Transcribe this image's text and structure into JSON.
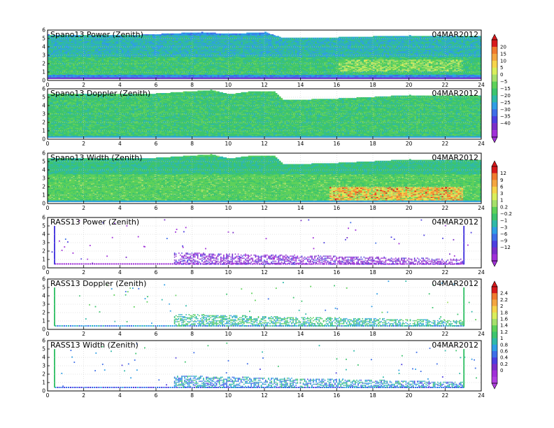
{
  "figure": {
    "date_label": "04MAR2012"
  },
  "chart_data": [
    {
      "type": "heatmap",
      "title": "Spano13 Power (Zenith)",
      "date": "04MAR2012",
      "xlim": [
        0,
        24
      ],
      "ylim": [
        0,
        6
      ],
      "x_ticks": [
        "0",
        "2",
        "4",
        "6",
        "8",
        "10",
        "12",
        "14",
        "16",
        "18",
        "20",
        "22",
        "24"
      ],
      "y_ticks": [
        "0",
        "1",
        "2",
        "3",
        "4",
        "5",
        "6"
      ],
      "grid": true,
      "coverage": "dense",
      "colorbar": "power",
      "top_height_profile": [
        [
          0,
          5.4
        ],
        [
          4,
          5.3
        ],
        [
          8.5,
          5.7
        ],
        [
          10,
          5.5
        ],
        [
          11,
          5.6
        ],
        [
          12,
          5.7
        ],
        [
          13,
          5.0
        ],
        [
          16,
          5.1
        ],
        [
          20,
          5.3
        ],
        [
          24,
          5.2
        ]
      ],
      "description_levels": [
        {
          "height_range": [
            0.3,
            0.7
          ],
          "value": -22
        },
        {
          "height_range": [
            0.7,
            2.8
          ],
          "value": -12
        },
        {
          "height_range": [
            2.8,
            5.3
          ],
          "value": -17
        }
      ]
    },
    {
      "type": "heatmap",
      "title": "Spano13 Doppler (Zenith)",
      "date": "04MAR2012",
      "xlim": [
        0,
        24
      ],
      "ylim": [
        0,
        6
      ],
      "x_ticks": [
        "0",
        "2",
        "4",
        "6",
        "8",
        "10",
        "12",
        "14",
        "16",
        "18",
        "20",
        "22",
        "24"
      ],
      "y_ticks": [
        "0",
        "1",
        "2",
        "3",
        "4",
        "5",
        "6"
      ],
      "grid": true,
      "coverage": "dense",
      "colorbar": "power",
      "top_height_profile": [
        [
          0,
          5.3
        ],
        [
          6,
          5.4
        ],
        [
          9,
          5.8
        ],
        [
          10,
          5.3
        ],
        [
          11,
          5.6
        ],
        [
          12.5,
          5.6
        ],
        [
          13,
          4.6
        ],
        [
          16,
          4.8
        ],
        [
          20,
          5.2
        ],
        [
          24,
          5.1
        ]
      ],
      "description_levels": [
        {
          "height_range": [
            0.2,
            5.5
          ],
          "value": -12
        }
      ]
    },
    {
      "type": "heatmap",
      "title": "Spano13 Width (Zenith)",
      "date": "04MAR2012",
      "xlim": [
        0,
        24
      ],
      "ylim": [
        0,
        6
      ],
      "x_ticks": [
        "0",
        "2",
        "4",
        "6",
        "8",
        "10",
        "12",
        "14",
        "16",
        "18",
        "20",
        "22",
        "24"
      ],
      "y_ticks": [
        "0",
        "1",
        "2",
        "3",
        "4",
        "5",
        "6"
      ],
      "grid": true,
      "coverage": "dense",
      "colorbar": "width",
      "top_height_profile": [
        [
          0,
          5.3
        ],
        [
          6,
          5.4
        ],
        [
          9,
          5.8
        ],
        [
          10,
          5.3
        ],
        [
          11,
          5.6
        ],
        [
          12.5,
          5.6
        ],
        [
          13,
          4.6
        ],
        [
          16,
          4.8
        ],
        [
          20,
          5.2
        ],
        [
          24,
          5.1
        ]
      ],
      "description_levels": [
        {
          "height_range": [
            0.2,
            3.5
          ],
          "value": 0.5
        },
        {
          "height_range": [
            3.5,
            5.5
          ],
          "value": -1.5
        }
      ]
    },
    {
      "type": "scatter",
      "title": "RASS13 Power (Zenith)",
      "date": "04MAR2012",
      "xlim": [
        0,
        24
      ],
      "ylim": [
        0,
        6
      ],
      "x_ticks": [
        "0",
        "2",
        "4",
        "6",
        "8",
        "10",
        "12",
        "14",
        "16",
        "18",
        "20",
        "22",
        "24"
      ],
      "y_ticks": [
        "0",
        "1",
        "2",
        "3",
        "4",
        "5",
        "6"
      ],
      "grid": true,
      "coverage": "sparse",
      "colorbar": "width",
      "vertical_lines": [
        0.35,
        23.0
      ],
      "baseline_height": 0.55,
      "active_band": {
        "x_range": [
          7.0,
          23.0
        ],
        "height_range": [
          0.5,
          1.9
        ]
      },
      "description_levels": [
        {
          "height_range": [
            0.5,
            1.9
          ],
          "value": -10
        }
      ]
    },
    {
      "type": "scatter",
      "title": "RASS13 Doppler (Zenith)",
      "date": "04MAR2012",
      "xlim": [
        0,
        24
      ],
      "ylim": [
        0,
        6
      ],
      "x_ticks": [
        "0",
        "2",
        "4",
        "6",
        "8",
        "10",
        "12",
        "14",
        "16",
        "18",
        "20",
        "22",
        "24"
      ],
      "y_ticks": [
        "0",
        "1",
        "2",
        "3",
        "4",
        "5",
        "6"
      ],
      "grid": true,
      "coverage": "sparse",
      "colorbar": "doppler",
      "vertical_lines": [
        0.35,
        23.0
      ],
      "baseline_height": 0.5,
      "active_band": {
        "x_range": [
          7.0,
          23.0
        ],
        "height_range": [
          0.5,
          1.9
        ]
      },
      "description_levels": [
        {
          "height_range": [
            0.5,
            1.9
          ],
          "value": 1.1
        }
      ]
    },
    {
      "type": "scatter",
      "title": "RASS13 Width (Zenith)",
      "date": "04MAR2012",
      "xlim": [
        0,
        24
      ],
      "ylim": [
        0,
        6
      ],
      "x_ticks": [
        "0",
        "2",
        "4",
        "6",
        "8",
        "10",
        "12",
        "14",
        "16",
        "18",
        "20",
        "22",
        "24"
      ],
      "y_ticks": [
        "0",
        "1",
        "2",
        "3",
        "4",
        "5",
        "6"
      ],
      "grid": true,
      "coverage": "sparse",
      "colorbar": "doppler",
      "vertical_lines": [
        0.35,
        23.0
      ],
      "baseline_height": 0.5,
      "active_band": {
        "x_range": [
          7.0,
          23.0
        ],
        "height_range": [
          0.5,
          1.9
        ]
      },
      "description_levels": [
        {
          "height_range": [
            0.5,
            1.9
          ],
          "value": 0.9
        }
      ]
    }
  ],
  "colorbars": {
    "power": {
      "labels": [
        "20",
        "15",
        "10",
        "5",
        "0",
        "−5",
        "−15",
        "−20",
        "−25",
        "−30",
        "−35",
        "−40"
      ],
      "colors": [
        "#d7191c",
        "#f07a2e",
        "#f4a640",
        "#f6d44a",
        "#d9ee5b",
        "#a6e06b",
        "#5ed15a",
        "#3dc46e",
        "#2fb9a8",
        "#2f9ee5",
        "#3d6ee8",
        "#4c3ee0",
        "#7a2ec8",
        "#a030d8"
      ]
    },
    "width": {
      "labels": [
        "12",
        "9",
        "6",
        "3",
        "1",
        "0.2",
        "−0.2",
        "−1",
        "−3",
        "−6",
        "−9",
        "−12"
      ],
      "colors": [
        "#d7191c",
        "#f07a2e",
        "#f4a640",
        "#f6d44a",
        "#d9ee5b",
        "#a6e06b",
        "#5ed15a",
        "#3dc46e",
        "#2fb9a8",
        "#2f9ee5",
        "#3d6ee8",
        "#4c3ee0",
        "#7a2ec8",
        "#a030d8"
      ]
    },
    "doppler": {
      "labels": [
        "2.4",
        "2.2",
        "2",
        "1.8",
        "1.6",
        "1.4",
        "1.2",
        "1",
        "0.8",
        "0.6",
        "0.4",
        "0.2",
        "0"
      ],
      "colors": [
        "#d7191c",
        "#f07a2e",
        "#f4a640",
        "#f6d44a",
        "#d9ee5b",
        "#a6e06b",
        "#5ed15a",
        "#3dc46e",
        "#2fb9a8",
        "#2f9ee5",
        "#3d6ee8",
        "#4c3ee0",
        "#7a2ec8",
        "#a030d8",
        "#b040e0"
      ]
    }
  }
}
